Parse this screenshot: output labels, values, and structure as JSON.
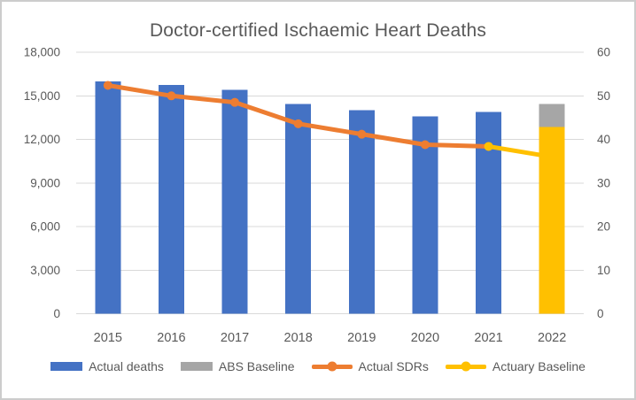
{
  "window": {
    "background": "#ffffff",
    "border_color": "#cccccc"
  },
  "chart_data": {
    "type": "combo-bar-line",
    "title": "Doctor-certified Ischaemic Heart Deaths",
    "categories": [
      "2015",
      "2016",
      "2017",
      "2018",
      "2019",
      "2020",
      "2021",
      "2022"
    ],
    "left_axis": {
      "min": 0,
      "max": 18000,
      "step": 3000,
      "tick_labels_top_to_bottom": [
        "18,000",
        "15,000",
        "12,000",
        "9,000",
        "6,000",
        "3,000",
        "0"
      ]
    },
    "right_axis": {
      "min": 0,
      "max": 60,
      "step": 10,
      "tick_labels_top_to_bottom": [
        "60",
        "50",
        "40",
        "30",
        "20",
        "10",
        "0"
      ]
    },
    "grid": true,
    "gridline_color": "#d9d9d9",
    "text_color": "#595959",
    "legend_position": "bottom",
    "series": [
      {
        "name": "Actual deaths",
        "type": "bar",
        "axis": "left",
        "color": "#4472C4",
        "values": [
          16000,
          15750,
          15400,
          14450,
          14000,
          13600,
          13900,
          null
        ]
      },
      {
        "name": "ABS Baseline",
        "type": "bar",
        "axis": "left",
        "color": "#A6A6A6",
        "values": [
          null,
          null,
          null,
          null,
          null,
          null,
          null,
          14450
        ]
      },
      {
        "name": "Actuary Baseline bar",
        "type": "bar",
        "axis": "left",
        "color": "#FFC000",
        "values": [
          null,
          null,
          null,
          null,
          null,
          null,
          null,
          12850
        ]
      },
      {
        "name": "Actual SDRs",
        "type": "line",
        "axis": "right",
        "color": "#ED7D31",
        "values": [
          52.4,
          50.0,
          48.5,
          43.6,
          41.2,
          38.8,
          38.4,
          null
        ]
      },
      {
        "name": "Actuary Baseline",
        "type": "line",
        "axis": "right",
        "color": "#FFC000",
        "values": [
          null,
          null,
          null,
          null,
          null,
          null,
          38.4,
          36.0
        ]
      }
    ]
  },
  "legend": {
    "items": [
      {
        "label": "Actual deaths",
        "swatch": "bar",
        "color": "#4472C4"
      },
      {
        "label": "ABS Baseline",
        "swatch": "bar",
        "color": "#A6A6A6"
      },
      {
        "label": "Actual SDRs",
        "swatch": "line",
        "color": "#ED7D31"
      },
      {
        "label": "Actuary Baseline",
        "swatch": "line",
        "color": "#FFC000"
      }
    ]
  }
}
